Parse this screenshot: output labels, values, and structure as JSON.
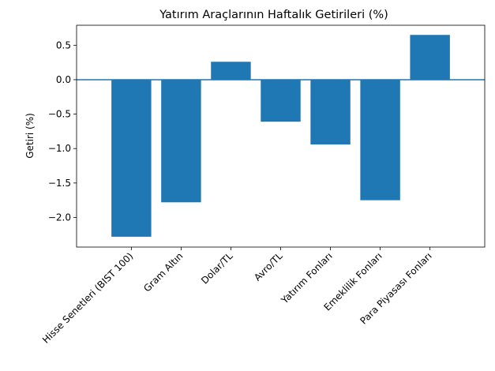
{
  "chart_data": {
    "type": "bar",
    "title": "Yatırım Araçlarının Haftalık Getirileri (%)",
    "xlabel": "",
    "ylabel": "Getiri (%)",
    "categories": [
      "Hisse Senetleri (BIST 100)",
      "Gram Altın",
      "Dolar/TL",
      "Avro/TL",
      "Yatırım Fonları",
      "Emeklilik Fonları",
      "Para Piyasası Fonları"
    ],
    "values": [
      -2.28,
      -1.78,
      0.26,
      -0.61,
      -0.94,
      -1.75,
      0.65
    ],
    "ylim": [
      -2.43,
      0.79
    ],
    "yticks": [
      0.5,
      0.0,
      -0.5,
      -1.0,
      -1.5,
      -2.0
    ],
    "ytick_labels": [
      "0.5",
      "0.0",
      "−0.5",
      "−1.0",
      "−1.5",
      "−2.0"
    ],
    "zero_line": true,
    "grid": false,
    "bar_color": "#1f77b4",
    "zero_line_color": "#1f77b4"
  }
}
